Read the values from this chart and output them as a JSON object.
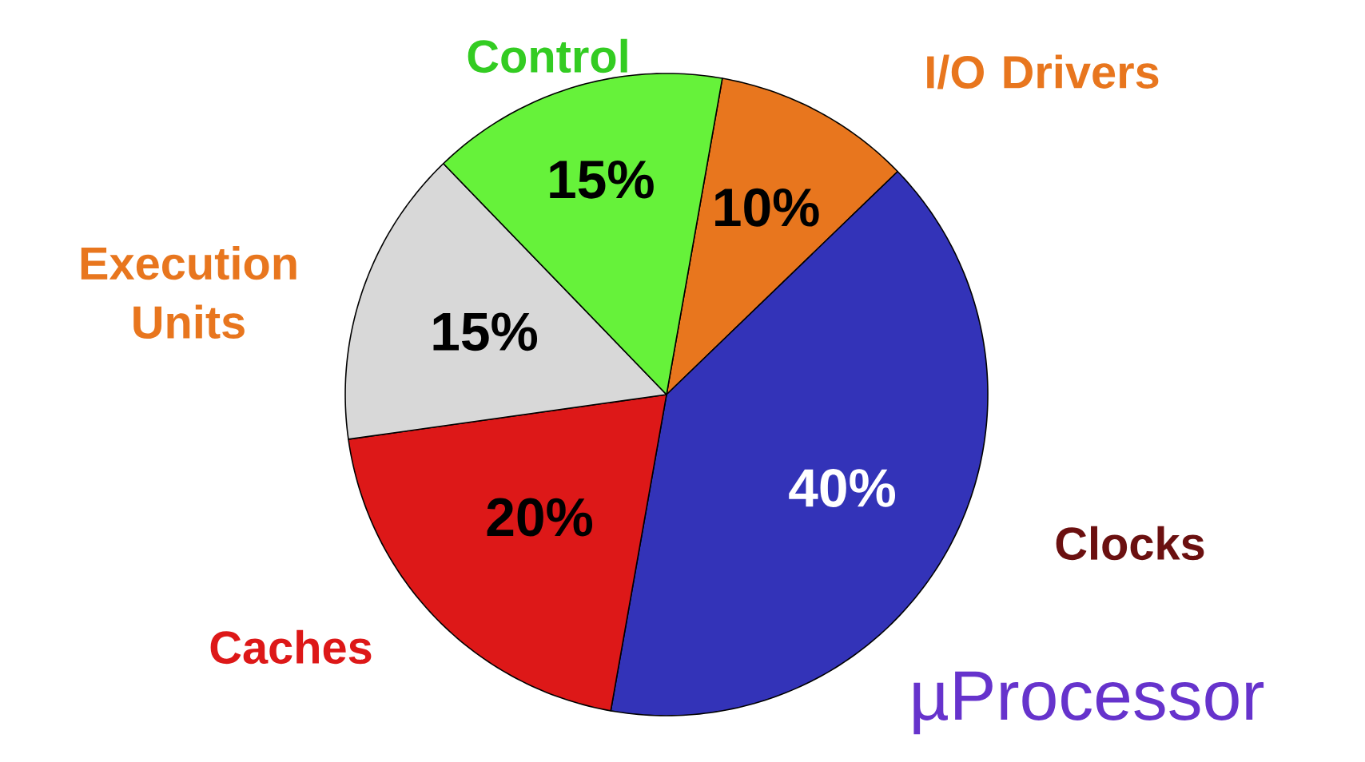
{
  "chart_data": {
    "type": "pie",
    "title": "µProcessor",
    "categories": [
      "I/O Drivers",
      "Clocks",
      "Caches",
      "Execution Units",
      "Control"
    ],
    "values": [
      10,
      40,
      20,
      15,
      15
    ],
    "value_labels": [
      "10%",
      "40%",
      "20%",
      "15%",
      "15%"
    ],
    "colors": [
      "#e8761e",
      "#3333b8",
      "#dd1818",
      "#d8d8d8",
      "#66f23a"
    ]
  }
}
